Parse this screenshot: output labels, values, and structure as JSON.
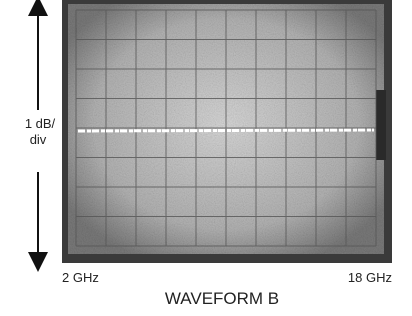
{
  "scale_label": {
    "lines": [
      "1 dB/",
      "div"
    ]
  },
  "x_axis": {
    "start_label": "2 GHz",
    "end_label": "18 GHz"
  },
  "caption": "WAVEFORM B"
}
